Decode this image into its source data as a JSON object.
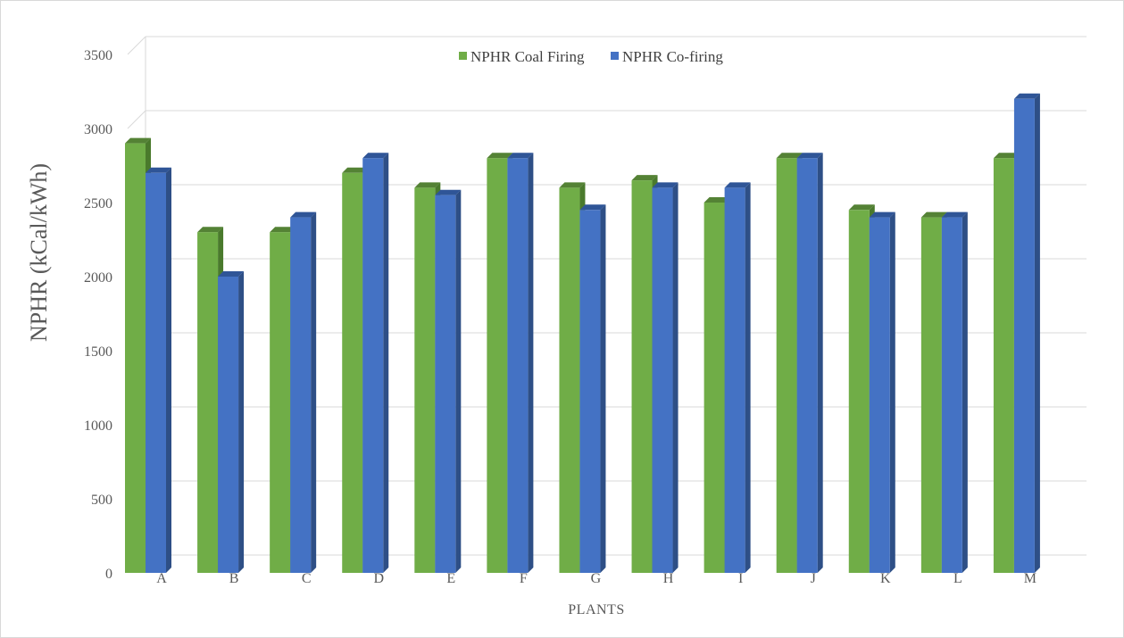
{
  "chart_data": {
    "type": "bar",
    "title": "",
    "xlabel": "PLANTS",
    "ylabel": "NPHR (kCal/kWh)",
    "ylim": [
      0,
      3500
    ],
    "yticks": [
      0,
      500,
      1000,
      1500,
      2000,
      2500,
      3000,
      3500
    ],
    "grid": true,
    "legend_position": "top-center",
    "categories": [
      "A",
      "B",
      "C",
      "D",
      "E",
      "F",
      "G",
      "H",
      "I",
      "J",
      "K",
      "L",
      "M"
    ],
    "series": [
      {
        "name": "NPHR Coal Firing",
        "color": "#70ad47",
        "values": [
          2900,
          2300,
          2300,
          2700,
          2600,
          2800,
          2600,
          2650,
          2500,
          2800,
          2450,
          2400,
          2800
        ]
      },
      {
        "name": "NPHR Co-firing",
        "color": "#4472c4",
        "values": [
          2700,
          2000,
          2400,
          2800,
          2550,
          2800,
          2450,
          2600,
          2600,
          2800,
          2400,
          2400,
          3200
        ]
      }
    ]
  }
}
